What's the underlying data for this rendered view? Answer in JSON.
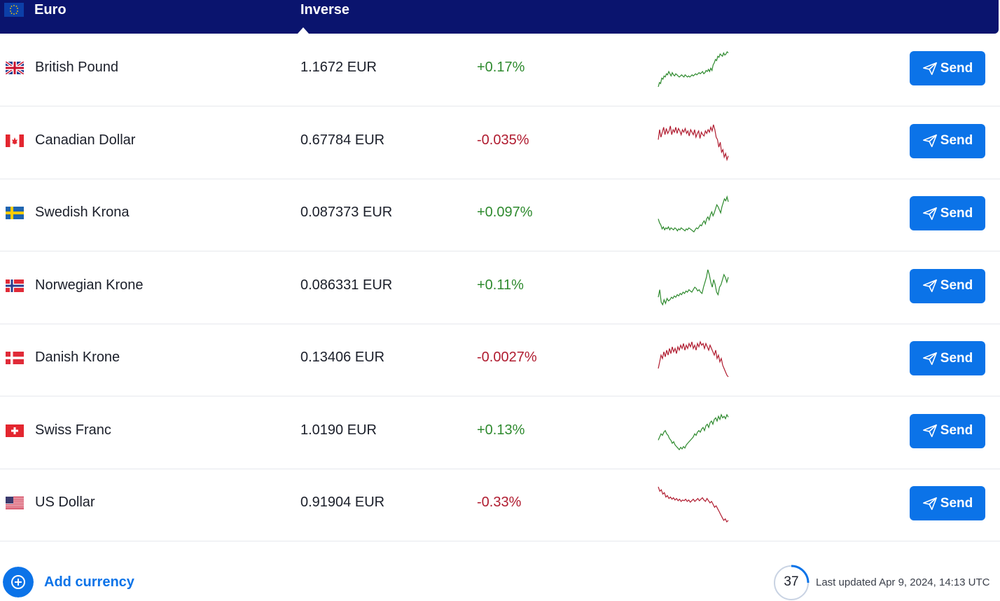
{
  "header": {
    "base_currency": "Euro",
    "inverse_label": "Inverse"
  },
  "rows": [
    {
      "flag": "uk-flag",
      "name": "British Pound",
      "rate": "1.1672 EUR",
      "change": "+0.17%",
      "direction": "up",
      "send_label": "Send",
      "spark": [
        2,
        6,
        5,
        10,
        9,
        12,
        11,
        14,
        13,
        16,
        14,
        12,
        15,
        13,
        12,
        14,
        13,
        12,
        11,
        12,
        13,
        12,
        11,
        13,
        12,
        11,
        12,
        11,
        12,
        13,
        12,
        13,
        14,
        13,
        14,
        15,
        14,
        15,
        16,
        14,
        15,
        17,
        16,
        18,
        16,
        19,
        17,
        22,
        24,
        27,
        26,
        30,
        29,
        32,
        31,
        30,
        33,
        31,
        32,
        34,
        33
      ]
    },
    {
      "flag": "ca-flag",
      "name": "Canadian Dollar",
      "rate": "0.67784 EUR",
      "change": "-0.035%",
      "direction": "down",
      "send_label": "Send",
      "spark": [
        20,
        28,
        22,
        26,
        30,
        24,
        29,
        25,
        27,
        31,
        24,
        28,
        26,
        30,
        25,
        29,
        27,
        24,
        28,
        26,
        29,
        25,
        27,
        23,
        28,
        26,
        24,
        28,
        22,
        25,
        27,
        21,
        26,
        24,
        23,
        27,
        25,
        28,
        26,
        30,
        27,
        32,
        28,
        22,
        20,
        14,
        18,
        10,
        12,
        6,
        9,
        4,
        7
      ]
    },
    {
      "flag": "se-flag",
      "name": "Swedish Krona",
      "rate": "0.087373 EUR",
      "change": "+0.097%",
      "direction": "up",
      "send_label": "Send",
      "spark": [
        18,
        14,
        12,
        8,
        10,
        7,
        9,
        8,
        10,
        7,
        9,
        8,
        7,
        9,
        8,
        6,
        8,
        7,
        9,
        8,
        7,
        6,
        8,
        7,
        9,
        8,
        7,
        6,
        5,
        7,
        9,
        8,
        10,
        12,
        11,
        14,
        16,
        13,
        18,
        20,
        17,
        22,
        25,
        21,
        24,
        28,
        32,
        30,
        27,
        24,
        30,
        34,
        38,
        36,
        40,
        35
      ]
    },
    {
      "flag": "no-flag",
      "name": "Norwegian Krone",
      "rate": "0.086331 EUR",
      "change": "+0.11%",
      "direction": "up",
      "send_label": "Send",
      "spark": [
        14,
        20,
        10,
        8,
        12,
        9,
        13,
        11,
        12,
        14,
        13,
        15,
        14,
        16,
        15,
        17,
        16,
        18,
        17,
        19,
        18,
        20,
        19,
        18,
        20,
        22,
        21,
        19,
        20,
        18,
        17,
        22,
        26,
        30,
        36,
        32,
        26,
        22,
        28,
        24,
        18,
        16,
        22,
        24,
        28,
        32,
        30,
        26,
        30
      ]
    },
    {
      "flag": "dk-flag",
      "name": "Danish Krone",
      "rate": "0.13406 EUR",
      "change": "-0.0027%",
      "direction": "down",
      "send_label": "Send",
      "spark": [
        14,
        22,
        30,
        26,
        34,
        28,
        36,
        30,
        38,
        32,
        40,
        34,
        38,
        32,
        40,
        36,
        42,
        38,
        44,
        36,
        42,
        38,
        44,
        40,
        46,
        38,
        42,
        36,
        44,
        40,
        46,
        42,
        44,
        38,
        44,
        40,
        36,
        42,
        38,
        34,
        30,
        36,
        26,
        30,
        22,
        26,
        18,
        14,
        10,
        6,
        4
      ]
    },
    {
      "flag": "ch-flag",
      "name": "Swiss Franc",
      "rate": "1.0190 EUR",
      "change": "+0.13%",
      "direction": "up",
      "send_label": "Send",
      "spark": [
        18,
        22,
        26,
        24,
        28,
        30,
        26,
        24,
        20,
        18,
        14,
        16,
        12,
        10,
        8,
        6,
        9,
        7,
        10,
        8,
        12,
        14,
        16,
        18,
        20,
        22,
        26,
        24,
        28,
        30,
        28,
        32,
        34,
        30,
        36,
        38,
        34,
        40,
        42,
        38,
        44,
        46,
        42,
        48,
        44,
        50,
        46,
        48,
        45,
        50,
        47
      ]
    },
    {
      "flag": "us-flag",
      "name": "US Dollar",
      "rate": "0.91904 EUR",
      "change": "-0.33%",
      "direction": "down",
      "send_label": "Send",
      "spark": [
        50,
        44,
        46,
        40,
        42,
        36,
        38,
        34,
        36,
        33,
        35,
        32,
        34,
        31,
        33,
        30,
        32,
        31,
        33,
        30,
        32,
        29,
        31,
        33,
        30,
        32,
        34,
        31,
        33,
        35,
        32,
        30,
        34,
        31,
        28,
        30,
        26,
        22,
        24,
        20,
        16,
        12,
        8,
        4,
        6,
        2,
        4
      ]
    }
  ],
  "footer": {
    "add_label": "Add currency",
    "timer_value": "37",
    "updated_text": "Last updated Apr 9, 2024, 14:13 UTC"
  },
  "colors": {
    "header_bg": "#0a146e",
    "accent": "#0b73e8",
    "up": "#2e8a2e",
    "down": "#b01c30"
  }
}
